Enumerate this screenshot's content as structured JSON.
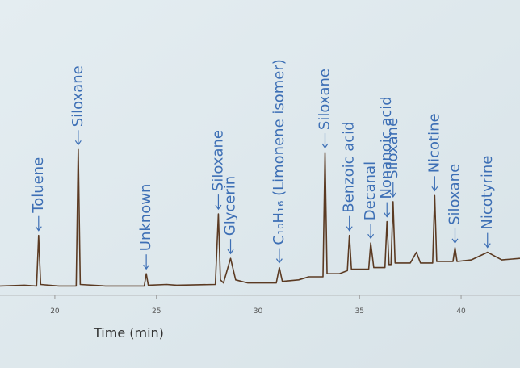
{
  "chart_data": {
    "type": "line",
    "x_label": "Time (min)",
    "xlim": [
      17.3,
      42.9
    ],
    "xticks": [
      20,
      25,
      30,
      35,
      40
    ],
    "ylim": [
      0,
      100
    ],
    "series": [
      {
        "color": "#5b3a22",
        "x": [
          17.3,
          18.5,
          19.1,
          19.2,
          19.3,
          20.2,
          21.05,
          21.15,
          21.25,
          22.5,
          24.4,
          24.5,
          24.6,
          25.5,
          26,
          27.9,
          28.05,
          28.15,
          28.3,
          28.65,
          28.9,
          29.5,
          30.9,
          31.05,
          31.2,
          32,
          32.5,
          33.2,
          33.3,
          33.4,
          34,
          34.4,
          34.5,
          34.6,
          35.45,
          35.55,
          35.7,
          36.25,
          36.35,
          36.45,
          36.55,
          36.65,
          36.75,
          37.5,
          37.8,
          38,
          38.6,
          38.7,
          38.8,
          39.6,
          39.7,
          39.8,
          40.5,
          41.3,
          42,
          42.9
        ],
        "values": [
          4,
          4.5,
          4,
          37,
          5,
          4,
          4,
          93,
          5,
          4,
          4,
          12,
          4.5,
          5,
          4.5,
          5,
          51,
          8,
          6,
          22,
          8,
          6,
          6,
          16,
          7,
          8,
          10,
          10,
          91,
          12,
          12,
          14,
          37,
          15,
          15,
          32,
          16,
          16,
          46,
          18,
          18,
          59,
          19,
          19,
          26,
          19,
          19,
          63,
          20,
          20,
          29,
          20,
          21,
          26,
          21,
          22
        ]
      }
    ],
    "annotations": [
      {
        "label": "Toluene",
        "x": 19.2
      },
      {
        "label": "Siloxane",
        "x": 21.15
      },
      {
        "label": "Unknown",
        "x": 24.5
      },
      {
        "label": "Siloxane",
        "x": 28.05
      },
      {
        "label": "Glycerin",
        "x": 28.65
      },
      {
        "label": "C₁₀H₁₆ (Limonene isomer)",
        "x": 31.05
      },
      {
        "label": "Siloxane",
        "x": 33.3
      },
      {
        "label": "Benzoic acid",
        "x": 34.5
      },
      {
        "label": "Decanal",
        "x": 35.55
      },
      {
        "label": "Nonanoic acid",
        "x": 36.35
      },
      {
        "label": "Siloxane",
        "x": 36.65
      },
      {
        "label": "Nicotine",
        "x": 38.7
      },
      {
        "label": "Siloxane",
        "x": 39.7
      },
      {
        "label": "Nicotyrine",
        "x": 41.3
      }
    ]
  }
}
